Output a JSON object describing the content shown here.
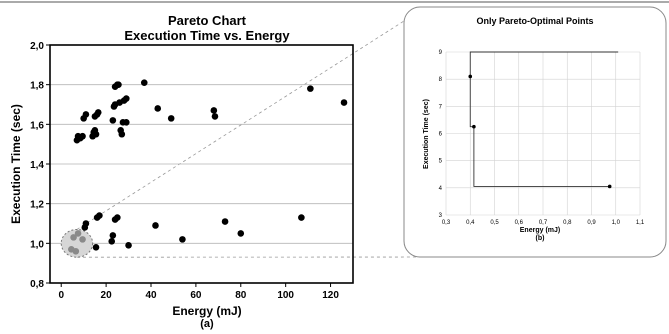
{
  "top_rule": true,
  "chart_data": [
    {
      "type": "scatter",
      "title": "Pareto Chart",
      "subtitle": "Execution Time vs. Energy",
      "xlabel": "Energy (mJ)",
      "caption": "(a)",
      "ylabel": "Execution Time (sec)",
      "xlim": [
        -5,
        130
      ],
      "ylim": [
        0.8,
        2.0
      ],
      "xticks": [
        "0",
        "20",
        "40",
        "60",
        "80",
        "100",
        "120"
      ],
      "yticks": [
        "0,8",
        "1,0",
        "1,2",
        "1,4",
        "1,6",
        "1,8",
        "2,0"
      ],
      "grid": "horizontal",
      "highlight_region": {
        "center": [
          7,
          1.0
        ],
        "radius_x": 7,
        "radius_y": 0.07
      },
      "points": [
        [
          4.5,
          0.97
        ],
        [
          6.5,
          0.96
        ],
        [
          5.5,
          1.03
        ],
        [
          7.5,
          1.05
        ],
        [
          9.5,
          1.02
        ],
        [
          10.5,
          1.08
        ],
        [
          11,
          1.1
        ],
        [
          15.5,
          0.98
        ],
        [
          16,
          1.13
        ],
        [
          17,
          1.14
        ],
        [
          22.5,
          1.01
        ],
        [
          23,
          1.04
        ],
        [
          24,
          1.12
        ],
        [
          25,
          1.13
        ],
        [
          30,
          0.99
        ],
        [
          42,
          1.09
        ],
        [
          54,
          1.02
        ],
        [
          73,
          1.11
        ],
        [
          80,
          1.05
        ],
        [
          107,
          1.13
        ],
        [
          7,
          1.52
        ],
        [
          7.5,
          1.54
        ],
        [
          8.5,
          1.53
        ],
        [
          9.5,
          1.54
        ],
        [
          10,
          1.63
        ],
        [
          11,
          1.65
        ],
        [
          14,
          1.54
        ],
        [
          14.5,
          1.56
        ],
        [
          15,
          1.57
        ],
        [
          15.5,
          1.55
        ],
        [
          15,
          1.64
        ],
        [
          16,
          1.65
        ],
        [
          16.5,
          1.66
        ],
        [
          23,
          1.62
        ],
        [
          23.5,
          1.69
        ],
        [
          24,
          1.7
        ],
        [
          24,
          1.79
        ],
        [
          25,
          1.8
        ],
        [
          25.5,
          1.8
        ],
        [
          26,
          1.71
        ],
        [
          26.5,
          1.57
        ],
        [
          27,
          1.55
        ],
        [
          27.5,
          1.61
        ],
        [
          28,
          1.72
        ],
        [
          29,
          1.73
        ],
        [
          29,
          1.61
        ],
        [
          37,
          1.81
        ],
        [
          43,
          1.68
        ],
        [
          49,
          1.63
        ],
        [
          68,
          1.67
        ],
        [
          68.5,
          1.64
        ],
        [
          111,
          1.78
        ],
        [
          126,
          1.71
        ]
      ]
    },
    {
      "type": "line",
      "title": "Only Pareto-Optimal Points",
      "xlabel": "Energy (mJ)",
      "caption": "(b)",
      "ylabel": "Execution Time (sec)",
      "xlim": [
        0.3,
        1.1
      ],
      "ylim": [
        3,
        9
      ],
      "xticks": [
        "0,3",
        "0,4",
        "0,5",
        "0,6",
        "0,7",
        "0,8",
        "0,9",
        "1,0",
        "1,1"
      ],
      "yticks": [
        "3",
        "4",
        "5",
        "6",
        "7",
        "8",
        "9"
      ],
      "grid": "both",
      "step": "horizontal-then-vertical",
      "points": [
        [
          0.4,
          8.1
        ],
        [
          0.415,
          6.25
        ],
        [
          0.975,
          4.05
        ]
      ]
    }
  ]
}
